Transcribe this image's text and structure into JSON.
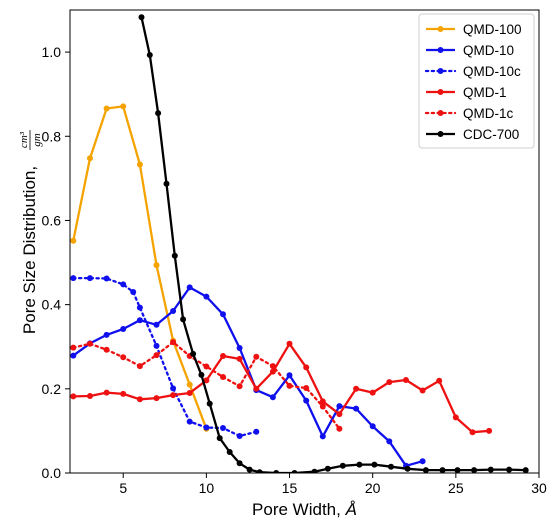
{
  "chart_data": {
    "type": "line",
    "xlabel": "Pore Width, ",
    "xlabel_unit": "Å",
    "ylabel": "Pore Size Distribution, ",
    "ylabel_unit_num": "cm³",
    "ylabel_unit_den": "gm",
    "xlim": [
      1.8,
      30
    ],
    "ylim": [
      0,
      1.1
    ],
    "xticks": [
      5,
      10,
      15,
      20,
      25,
      30
    ],
    "yticks": [
      0.0,
      0.2,
      0.4,
      0.6,
      0.8,
      1.0
    ],
    "ytick_labels": [
      "0.0",
      "0.2",
      "0.4",
      "0.6",
      "0.8",
      "1.0"
    ],
    "grid": false,
    "legend_position": "top-right",
    "series": [
      {
        "name": "QMD-100",
        "color": "#f5a300",
        "dash": "solid",
        "x": [
          2,
          3,
          4,
          5,
          6,
          7,
          8,
          9,
          10
        ],
        "y": [
          0.552,
          0.748,
          0.866,
          0.871,
          0.733,
          0.494,
          0.314,
          0.21,
          0.105
        ]
      },
      {
        "name": "QMD-10",
        "color": "#1010ee",
        "dash": "solid",
        "x": [
          2,
          3,
          4,
          5,
          6,
          7,
          8,
          9,
          10,
          11,
          12,
          13,
          14,
          15,
          16,
          17,
          18,
          19,
          20,
          21,
          22,
          23
        ],
        "y": [
          0.279,
          0.308,
          0.328,
          0.342,
          0.363,
          0.352,
          0.385,
          0.441,
          0.419,
          0.377,
          0.297,
          0.197,
          0.18,
          0.232,
          0.172,
          0.087,
          0.159,
          0.153,
          0.111,
          0.075,
          0.017,
          0.028
        ]
      },
      {
        "name": "QMD-10c",
        "color": "#1010ee",
        "dash": "dotted",
        "x": [
          2,
          3,
          4,
          5,
          5.6,
          6,
          7,
          8,
          9,
          10,
          11,
          12,
          13
        ],
        "y": [
          0.463,
          0.463,
          0.462,
          0.448,
          0.43,
          0.393,
          0.302,
          0.201,
          0.122,
          0.108,
          0.107,
          0.088,
          0.098
        ]
      },
      {
        "name": "QMD-1",
        "color": "#ee1111",
        "dash": "solid",
        "x": [
          2,
          3,
          4,
          5,
          6,
          7,
          8,
          9,
          10,
          11,
          12,
          13,
          14,
          15,
          16,
          17,
          18,
          19,
          20,
          21,
          22,
          23,
          24,
          25,
          26,
          27
        ],
        "y": [
          0.182,
          0.183,
          0.191,
          0.188,
          0.175,
          0.178,
          0.185,
          0.19,
          0.22,
          0.278,
          0.271,
          0.2,
          0.241,
          0.307,
          0.251,
          0.17,
          0.14,
          0.2,
          0.191,
          0.216,
          0.221,
          0.196,
          0.219,
          0.132,
          0.097,
          0.1
        ]
      },
      {
        "name": "QMD-1c",
        "color": "#ee1111",
        "dash": "dotted",
        "x": [
          2,
          3,
          4,
          5,
          6,
          7,
          8,
          9,
          10,
          11,
          12,
          13,
          14,
          15,
          16,
          17,
          18
        ],
        "y": [
          0.298,
          0.307,
          0.293,
          0.275,
          0.254,
          0.28,
          0.311,
          0.278,
          0.253,
          0.228,
          0.206,
          0.276,
          0.254,
          0.207,
          0.202,
          0.158,
          0.105
        ]
      },
      {
        "name": "CDC-700",
        "color": "#000000",
        "dash": "solid",
        "x": [
          6.1,
          6.6,
          7.1,
          7.6,
          8.1,
          8.6,
          9.2,
          9.7,
          10.2,
          10.8,
          11.4,
          12.0,
          12.6,
          13.2,
          14.2,
          15.3,
          16.5,
          17.3,
          18.2,
          19.2,
          20.1,
          21.1,
          22.1,
          23.2,
          24.2,
          25.1,
          26.1,
          27.1,
          28.2,
          29.2
        ],
        "y": [
          1.083,
          0.993,
          0.855,
          0.687,
          0.516,
          0.365,
          0.283,
          0.233,
          0.165,
          0.083,
          0.05,
          0.023,
          0.008,
          0.002,
          0.0,
          0.0,
          0.003,
          0.01,
          0.017,
          0.02,
          0.02,
          0.015,
          0.01,
          0.007,
          0.007,
          0.007,
          0.007,
          0.008,
          0.008,
          0.007
        ]
      }
    ]
  }
}
